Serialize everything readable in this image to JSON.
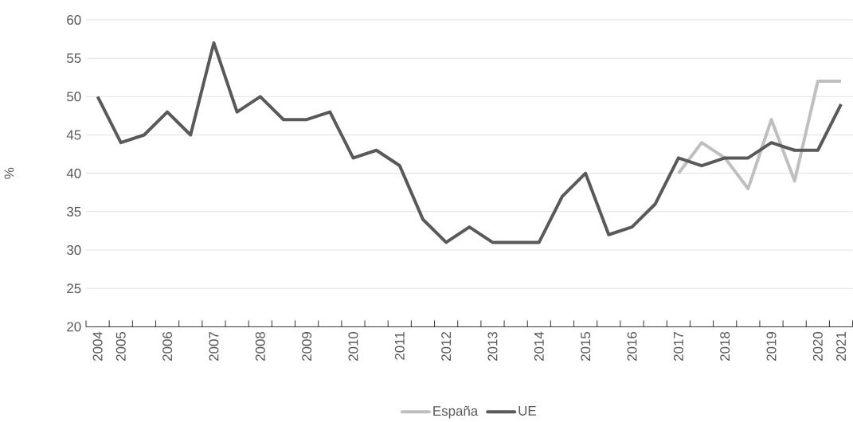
{
  "chart_data": {
    "type": "line",
    "ylabel": "%",
    "categories": [
      "2004",
      "2005",
      null,
      "2006",
      null,
      "2007",
      null,
      "2008",
      null,
      "2009",
      null,
      "2010",
      null,
      "2011",
      null,
      "2012",
      null,
      "2013",
      null,
      "2014",
      null,
      "2015",
      null,
      "2016",
      null,
      "2017",
      null,
      "2018",
      null,
      "2019",
      null,
      "2020",
      "2021"
    ],
    "series": [
      {
        "name": "España",
        "color": "#bfbfbf",
        "values": [
          null,
          null,
          null,
          null,
          null,
          null,
          null,
          null,
          null,
          null,
          null,
          null,
          null,
          null,
          null,
          null,
          null,
          null,
          null,
          null,
          null,
          null,
          null,
          null,
          null,
          40,
          44,
          42,
          38,
          47,
          39,
          52,
          52
        ]
      },
      {
        "name": "UE",
        "color": "#595959",
        "values": [
          50,
          44,
          45,
          48,
          45,
          57,
          48,
          50,
          47,
          47,
          48,
          42,
          43,
          41,
          34,
          31,
          33,
          31,
          31,
          31,
          37,
          40,
          32,
          33,
          36,
          42,
          41,
          42,
          42,
          44,
          43,
          43,
          49
        ]
      }
    ],
    "ylim": [
      20,
      60
    ],
    "yticks": [
      20,
      25,
      30,
      35,
      40,
      45,
      50,
      55,
      60
    ],
    "grid": "y",
    "legend": "bottom",
    "marker": "none",
    "line_style": "solid"
  }
}
